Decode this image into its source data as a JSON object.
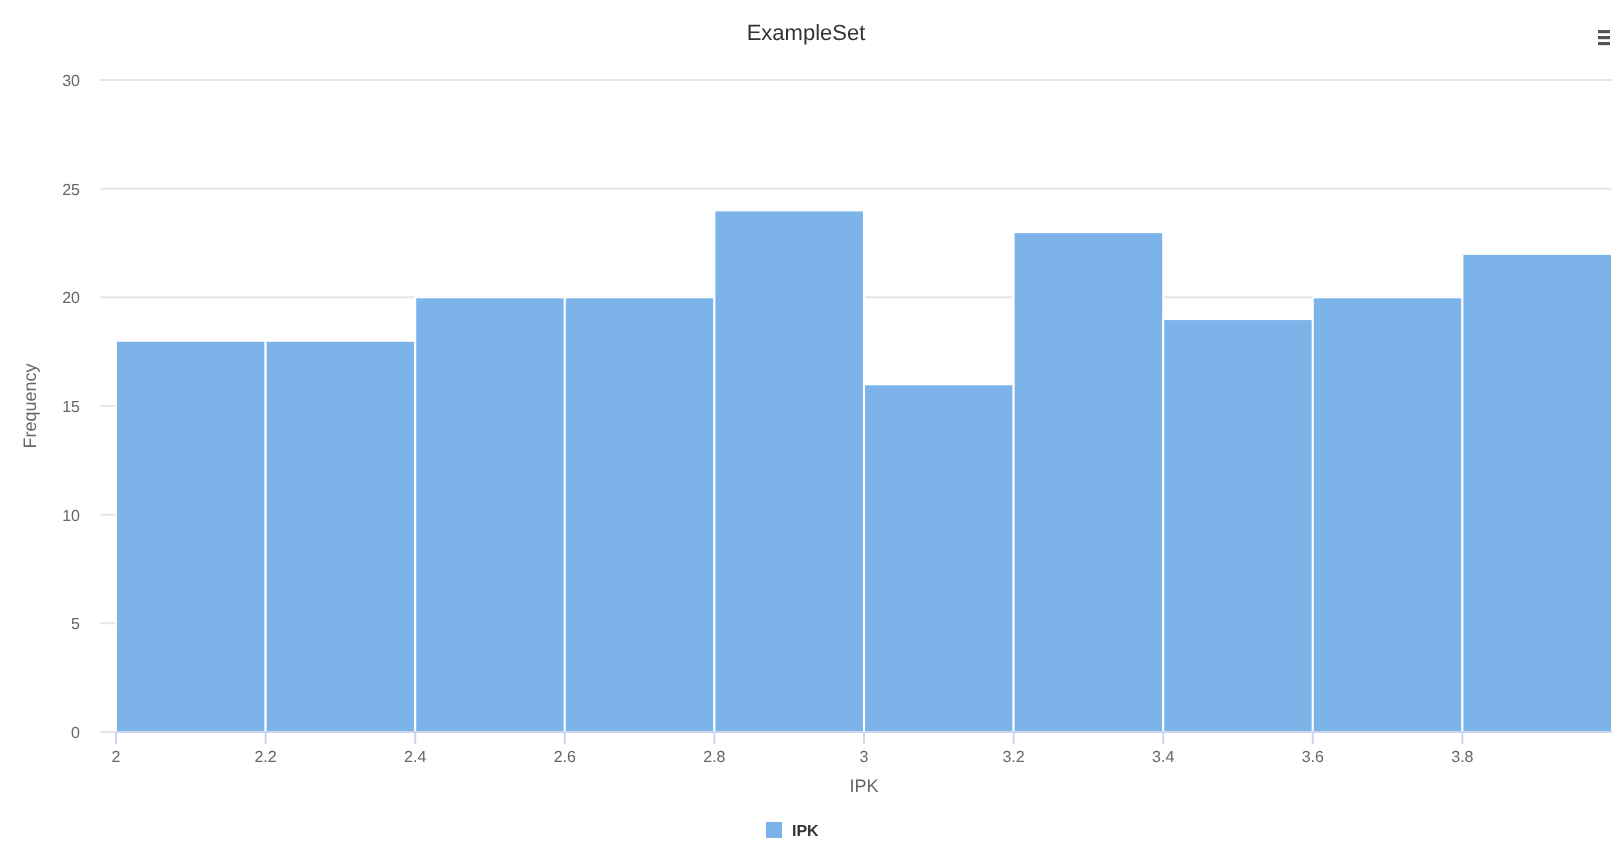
{
  "chart_data": {
    "type": "histogram",
    "title": "ExampleSet",
    "xlabel": "IPK",
    "ylabel": "Frequency",
    "bins": [
      2,
      2.2,
      2.4,
      2.6,
      2.8,
      3,
      3.2,
      3.4,
      3.6,
      3.8,
      4
    ],
    "series": [
      {
        "name": "IPK",
        "color": "#7cb4ea",
        "values": [
          18,
          18,
          20,
          20,
          24,
          16,
          23,
          19,
          20,
          22
        ]
      }
    ],
    "xlim": [
      2,
      4
    ],
    "xticks": [
      2,
      2.2,
      2.4,
      2.6,
      2.8,
      3,
      3.2,
      3.4,
      3.6,
      3.8
    ],
    "ylim": [
      0,
      30
    ],
    "yticks": [
      0,
      5,
      10,
      15,
      20,
      25,
      30
    ],
    "grid": "y",
    "legend": "bottom"
  }
}
